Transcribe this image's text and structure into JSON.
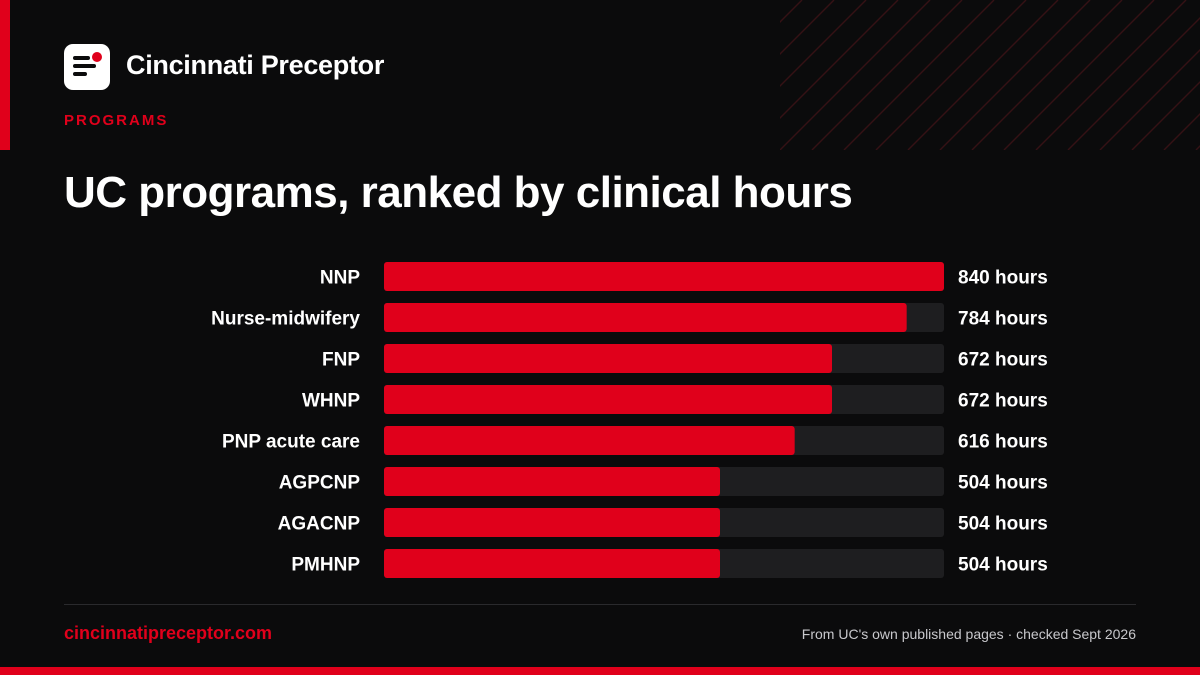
{
  "colors": {
    "accent": "#e0001b",
    "background": "#0b0b0c",
    "track": "#1e1e20",
    "text": "#ffffff",
    "muted": "#c8c8cc"
  },
  "brand": {
    "name": "Cincinnati Preceptor",
    "logo_icon": "document-lines-icon"
  },
  "eyebrow": "PROGRAMS",
  "title": "UC programs, ranked by clinical hours",
  "chart_data": {
    "type": "bar",
    "orientation": "horizontal",
    "categories": [
      "NNP",
      "Nurse-midwifery",
      "FNP",
      "WHNP",
      "PNP acute care",
      "AGPCNP",
      "AGACNP",
      "PMHNP"
    ],
    "values": [
      840,
      784,
      672,
      672,
      616,
      504,
      504,
      504
    ],
    "value_labels": [
      "840 hours",
      "784 hours",
      "672 hours",
      "672 hours",
      "616 hours",
      "504 hours",
      "504 hours",
      "504 hours"
    ],
    "xlim": [
      0,
      840
    ],
    "grid": false,
    "legend": "none"
  },
  "footer": {
    "url": "cincinnatipreceptor.com",
    "note": "From UC's own published pages · checked Sept 2026"
  }
}
